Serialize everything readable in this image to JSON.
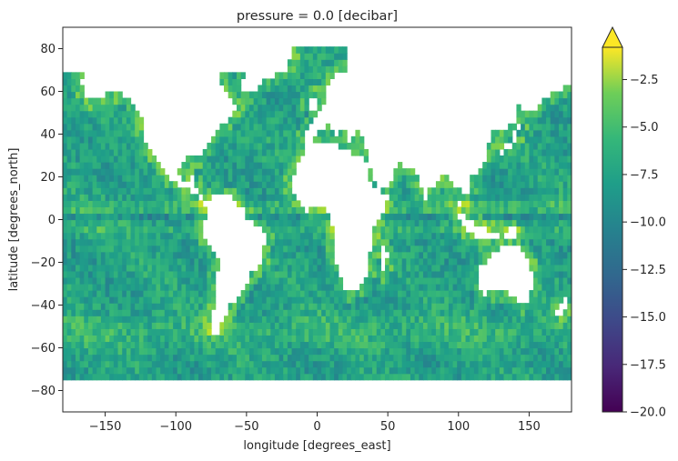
{
  "chart_data": {
    "type": "heatmap",
    "title": "pressure = 0.0 [decibar]",
    "xlabel": "longitude [degrees_east]",
    "ylabel": "latitude [degrees_north]",
    "xlim": [
      -180,
      180
    ],
    "ylim": [
      -90,
      90
    ],
    "x_ticks": [
      -150,
      -100,
      -50,
      0,
      50,
      100,
      150
    ],
    "y_ticks": [
      -80,
      -60,
      -40,
      -20,
      0,
      20,
      40,
      60,
      80
    ],
    "colorbar": {
      "colormap": "viridis",
      "range": [
        -20.0,
        -0.8
      ],
      "extend": "max",
      "ticks": [
        -20.0,
        -17.5,
        -15.0,
        -12.5,
        -10.0,
        -7.5,
        -5.0,
        -2.5
      ],
      "tick_labels": [
        "−20.0",
        "−17.5",
        "−15.0",
        "−12.5",
        "−10.0",
        "−7.5",
        "−5.0",
        "−2.5"
      ]
    },
    "typical_value_range": [
      -12,
      -5
    ],
    "ocean_coverage_lat": [
      -75,
      80
    ],
    "no_data_color": "#ffffff"
  }
}
